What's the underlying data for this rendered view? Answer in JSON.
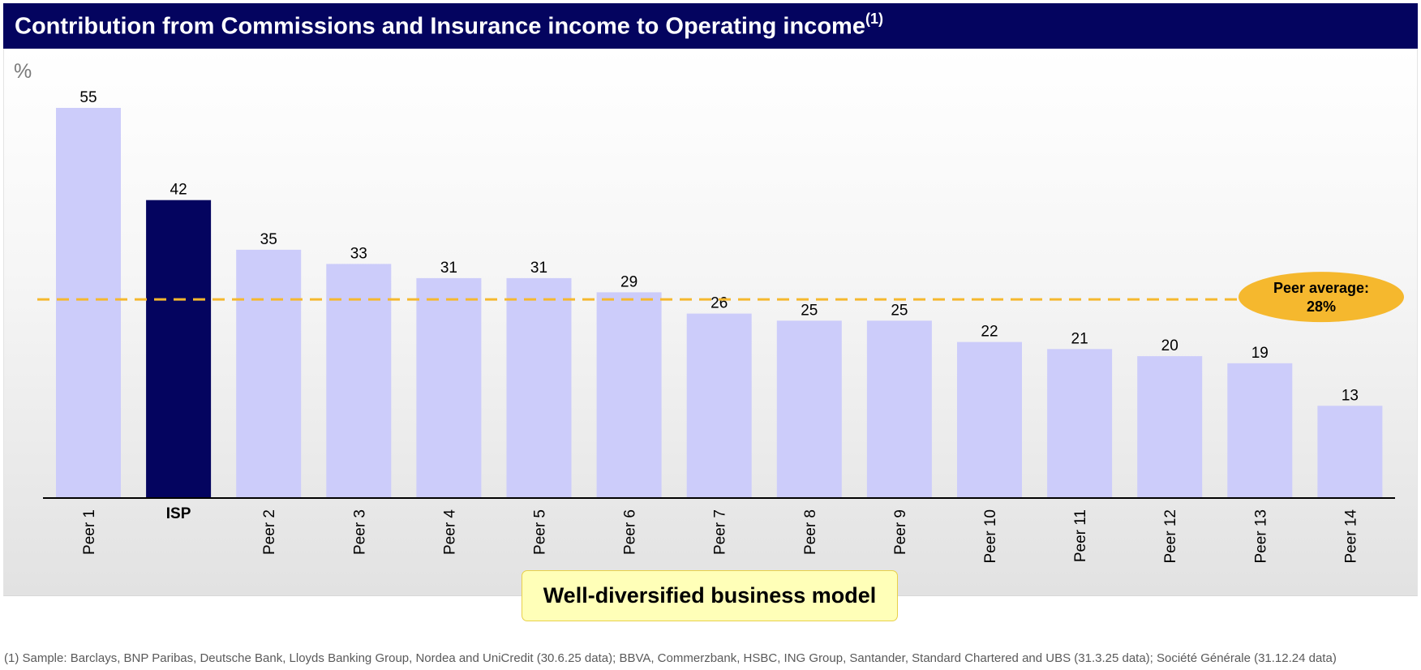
{
  "header": {
    "title": "Contribution from Commissions and Insurance income to Operating income",
    "title_note": "(1)"
  },
  "unit_label": "%",
  "chart_data": {
    "type": "bar",
    "title": "Contribution from Commissions and Insurance income to Operating income",
    "ylabel": "%",
    "xlabel": "",
    "ylim": [
      0,
      60
    ],
    "categories": [
      "Peer 1",
      "ISP",
      "Peer 2",
      "Peer 3",
      "Peer 4",
      "Peer 5",
      "Peer 6",
      "Peer 7",
      "Peer 8",
      "Peer 9",
      "Peer 10",
      "Peer 11",
      "Peer 12",
      "Peer 13",
      "Peer 14"
    ],
    "values": [
      55,
      42,
      35,
      33,
      31,
      31,
      29,
      26,
      25,
      25,
      22,
      21,
      20,
      19,
      13
    ],
    "highlight": "ISP",
    "colors": {
      "bar": "#ccccfa",
      "highlight": "#04045f",
      "average_line": "#f5b82e",
      "axis": "#000000",
      "label": "#000000"
    },
    "reference_line": {
      "value": 28,
      "label_line1": "Peer average:",
      "label_line2": "28%"
    }
  },
  "callout": {
    "text": "Well-diversified business model"
  },
  "footnote": "(1)  Sample: Barclays, BNP Paribas, Deutsche Bank, Lloyds Banking Group, Nordea and UniCredit (30.6.25 data); BBVA, Commerzbank, HSBC, ING Group, Santander, Standard Chartered and UBS (31.3.25 data); Société Générale (31.12.24 data)"
}
